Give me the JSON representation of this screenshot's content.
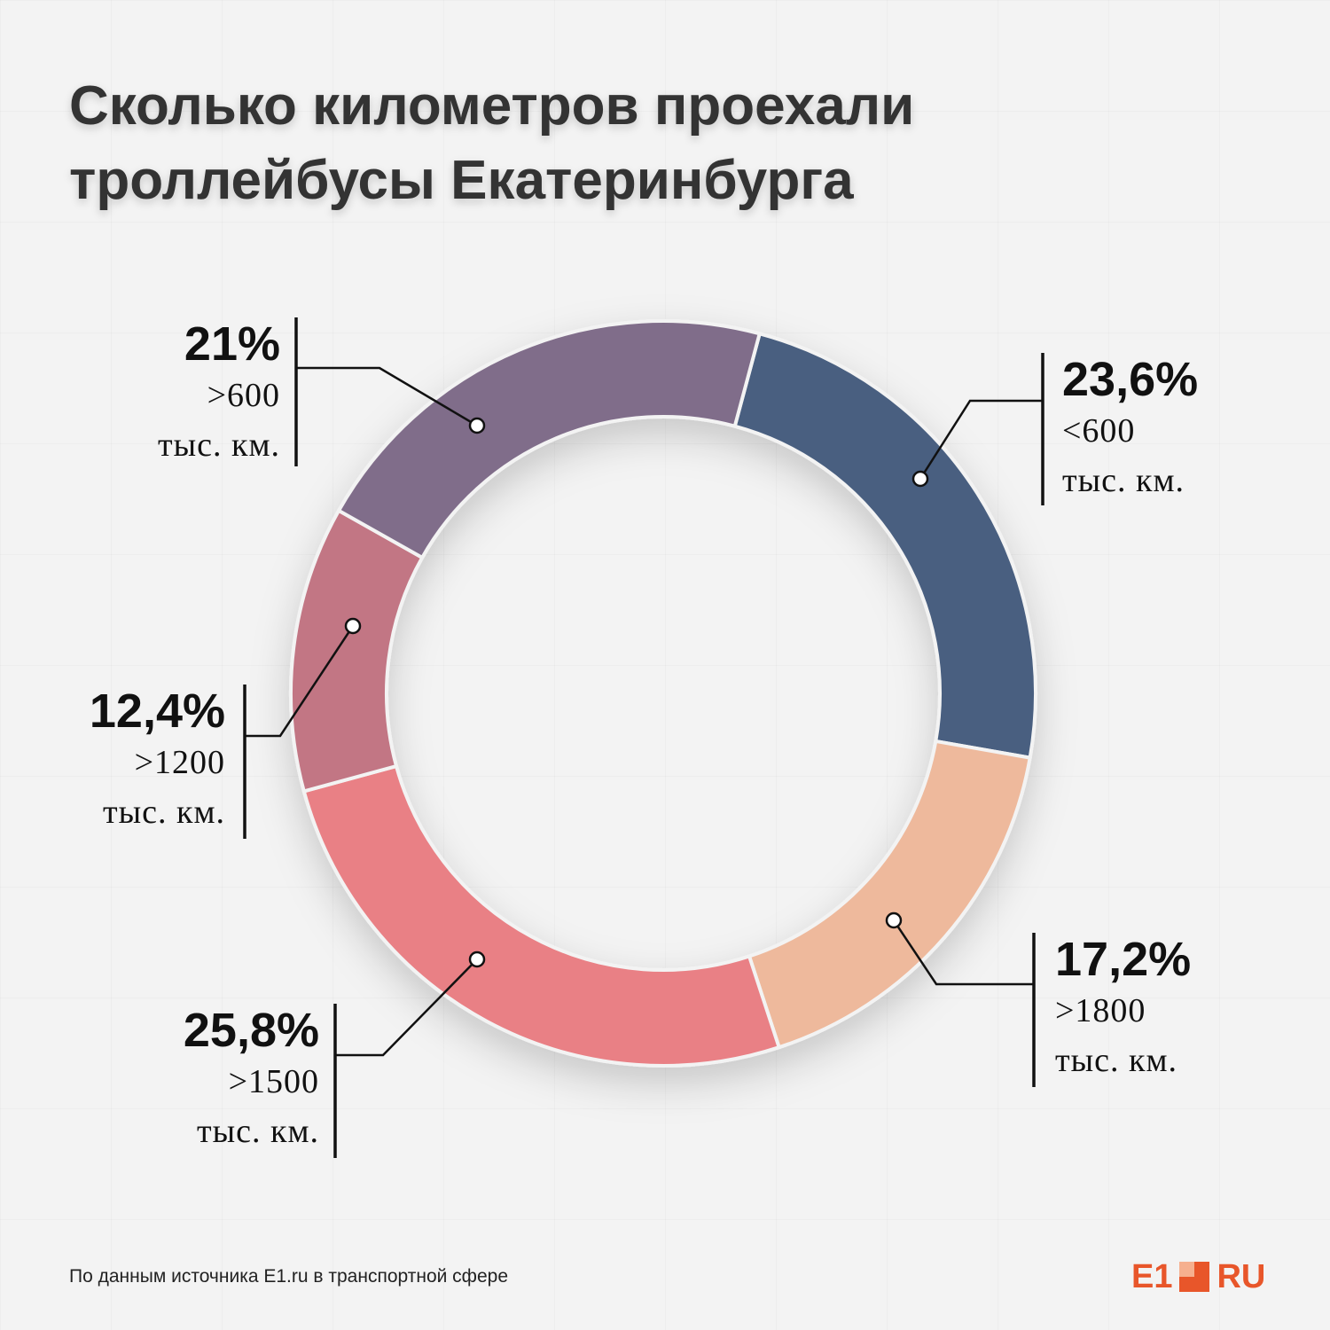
{
  "title": {
    "line1": "Сколько километров проехали",
    "line2": "троллейбусы Екатеринбурга"
  },
  "chart_data": {
    "type": "pie",
    "donut": true,
    "categories": [
      "<600 тыс. км.",
      ">1800 тыс. км.",
      ">1500 тыс. км.",
      ">1200 тыс. км.",
      ">600 тыс. км."
    ],
    "values": [
      23.6,
      17.2,
      25.8,
      12.4,
      21.0
    ],
    "colors": [
      "#485f80",
      "#eeb99c",
      "#e98085",
      "#c27684",
      "#806d8a"
    ],
    "labels": [
      {
        "pct": "23,6%",
        "range": "<600",
        "unit": "тыс. км."
      },
      {
        "pct": "17,2%",
        "range": ">1800",
        "unit": "тыс. км."
      },
      {
        "pct": "25,8%",
        "range": ">1500",
        "unit": "тыс. км."
      },
      {
        "pct": "12,4%",
        "range": ">1200",
        "unit": "тыс. км."
      },
      {
        "pct": "21%",
        "range": ">600",
        "unit": "тыс. км."
      }
    ]
  },
  "footer": {
    "source": "По данным источника E1.ru в транспортной сфере"
  },
  "logo": {
    "left": "E1",
    "right": "RU",
    "brand_color": "#e8562a"
  }
}
